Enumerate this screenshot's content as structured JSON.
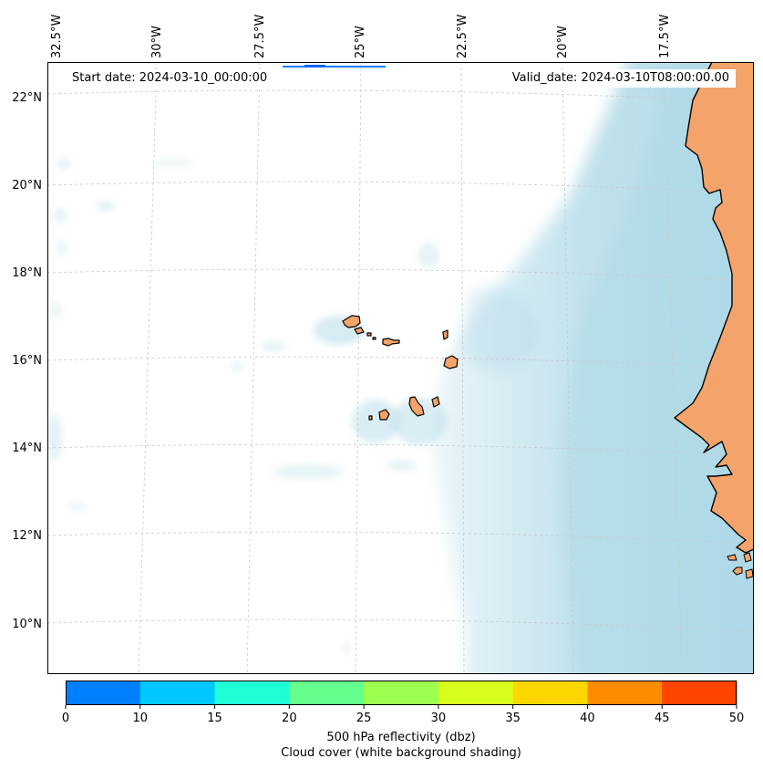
{
  "header": {
    "start_date": "Start date: 2024-03-10_00:00:00",
    "valid_date": "Valid_date: 2024-03-10T08:00:00.00"
  },
  "map": {
    "region": "Cape Verde Islands and West African coast (Senegal, Mauritania)",
    "lon_labels": [
      "32.5°W",
      "30°W",
      "27.5°W",
      "25°W",
      "22.5°W",
      "20°W",
      "17.5°W"
    ],
    "lat_labels": [
      "22°N",
      "20°N",
      "18°N",
      "16°N",
      "14°N",
      "12°N",
      "10°N"
    ],
    "colors": {
      "land": "#f4a46a",
      "cloud": "#add8e6",
      "gridline": "#c8c8c8",
      "coastline": "#000000"
    }
  },
  "colorbar": {
    "ticks": [
      "0",
      "10",
      "15",
      "20",
      "25",
      "30",
      "35",
      "40",
      "45",
      "50"
    ],
    "colors": [
      "#0080ff",
      "#00c8ff",
      "#1effd8",
      "#64ff8c",
      "#9cff50",
      "#d8ff1c",
      "#ffd700",
      "#ff8c00",
      "#ff4500"
    ],
    "label": "500 hPa reflectivity (dbz)",
    "sublabel": "Cloud cover (white background shading)"
  }
}
